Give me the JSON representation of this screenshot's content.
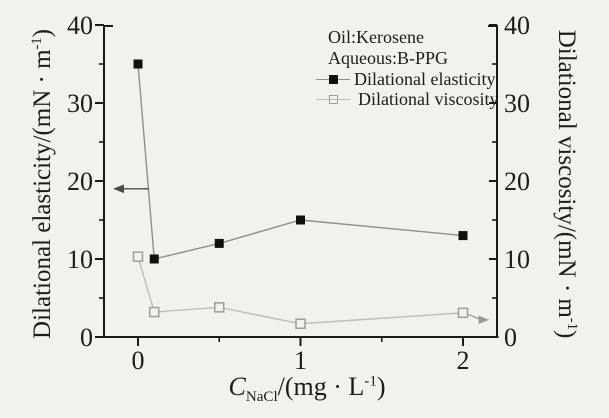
{
  "colors": {
    "background": "#f1f1ee",
    "axis": "#1a1a1a",
    "text": "#1c1c1c",
    "left_arrow": "#4a4a4a",
    "right_arrow": "#9a9a9a"
  },
  "chart_data": {
    "type": "line",
    "title": "",
    "x": [
      0,
      0.1,
      0.5,
      1,
      2
    ],
    "series": [
      {
        "name": "Dilational elasticity",
        "axis": "left",
        "values": [
          35,
          10,
          12,
          15,
          13
        ],
        "marker": "filled-square",
        "marker_color": "#101010",
        "line_color": "#8e8e8e"
      },
      {
        "name": "Dilational viscosity",
        "axis": "right",
        "values": [
          10.3,
          3.2,
          3.8,
          1.7,
          3.1
        ],
        "marker": "open-square",
        "marker_color": "#9e9e9e",
        "line_color": "#bdbdbd"
      }
    ],
    "x_axis": {
      "label_var": "C",
      "label_sub": "NaCl",
      "label_mid": "/(mg · L",
      "label_sup": "-1",
      "label_end": ")",
      "ticks": [
        0,
        1,
        2
      ],
      "minor_ticks": [
        0.5,
        1.5
      ],
      "range": [
        -0.21,
        2.21
      ]
    },
    "y_left": {
      "label_pre": "Dilational elasticity/(mN · m",
      "label_sup": "-1",
      "label_end": ")",
      "ticks": [
        0,
        10,
        20,
        30,
        40
      ],
      "minor_ticks": [
        5,
        15,
        25,
        35
      ],
      "range": [
        0,
        40
      ]
    },
    "y_right": {
      "label_pre": "Dilational viscosity/(mN · m",
      "label_sup": "-1",
      "label_end": ")",
      "ticks": [
        0,
        10,
        20,
        30,
        40
      ],
      "minor_ticks": [
        5,
        15,
        25,
        35
      ],
      "range": [
        0,
        40
      ]
    },
    "conditions": [
      "Oil:Kerosene",
      "Aqueous:B-PPG"
    ],
    "pointers": {
      "left_y": 19,
      "right_y": 2.2
    },
    "legend_position": "top-right-inside",
    "grid": false
  }
}
